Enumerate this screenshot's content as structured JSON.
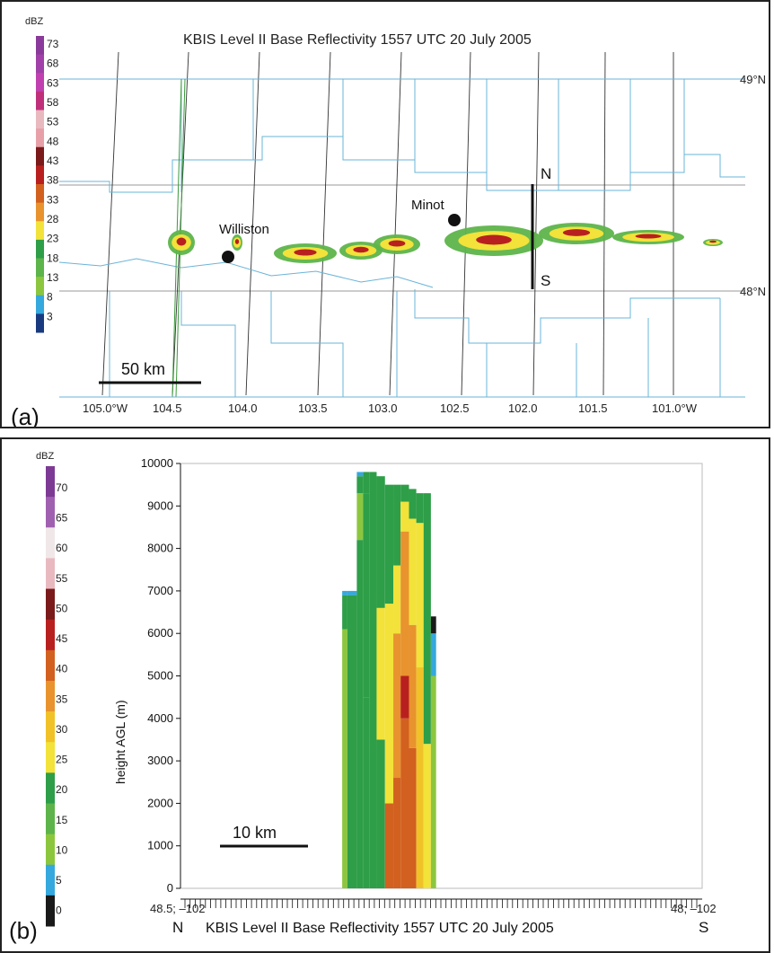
{
  "panel_a": {
    "label": "(a)",
    "title": "KBIS Level II Base Reflectivity 1557 UTC 20 July 2005",
    "legend_title": "dBZ",
    "legend_ticks": [
      "73",
      "68",
      "63",
      "58",
      "53",
      "48",
      "43",
      "38",
      "33",
      "28",
      "23",
      "18",
      "13",
      "8",
      "3"
    ],
    "lat_labels": [
      "49°N",
      "48°N"
    ],
    "lon_labels": [
      "105.0°W",
      "104.5",
      "104.0",
      "103.5",
      "103.0",
      "102.5",
      "102.0",
      "101.5",
      "101.0°W"
    ],
    "cities": [
      "Williston",
      "Minot"
    ],
    "transect_labels": {
      "north": "N",
      "south": "S"
    },
    "scale_label": "50 km"
  },
  "panel_b": {
    "label": "(b)",
    "caption": "KBIS Level II Base Reflectivity 1557 UTC 20 July 2005",
    "legend_title": "dBZ",
    "legend_ticks": [
      "70",
      "65",
      "60",
      "55",
      "50",
      "45",
      "40",
      "35",
      "30",
      "25",
      "20",
      "15",
      "10",
      "5",
      "0"
    ],
    "ylabel": "height AGL (m)",
    "x_start_label": "48.5; –102",
    "x_end_label": "48; –102",
    "north_label": "N",
    "south_label": "S",
    "scale_label": "10 km"
  },
  "colors": {
    "dbz_0": "#1a1a1a",
    "dbz_5": "#35a8de",
    "dbz_10": "#8cc63f",
    "dbz_15": "#5db44a",
    "dbz_20": "#2e9e48",
    "dbz_25": "#3a8e3a",
    "dbz_30": "#f2e23a",
    "dbz_35": "#f0c228",
    "dbz_40": "#e8932e",
    "dbz_45": "#d2601f",
    "dbz_50": "#b8201f",
    "dbz_55": "#7a1a1a",
    "dbz_60": "#e9b9c0",
    "dbz_65": "#f0e8e8",
    "dbz_70": "#8a3a9a"
  },
  "chart_data": [
    {
      "type": "heatmap",
      "panel": "a",
      "title": "KBIS Level II Base Reflectivity 1557 UTC 20 July 2005",
      "colorbar_label": "dBZ",
      "colorbar_ticks": [
        73,
        68,
        63,
        58,
        53,
        48,
        43,
        38,
        33,
        28,
        23,
        18,
        13,
        8,
        3
      ],
      "x_axis_ticks": [
        "105.0°W",
        "104.5",
        "104.0",
        "103.5",
        "103.0",
        "102.5",
        "102.0",
        "101.5",
        "101.0°W"
      ],
      "lat_lines": [
        "49°N",
        "48°N"
      ],
      "cities": [
        {
          "name": "Williston",
          "lon": -104.1,
          "lat": 48.2
        },
        {
          "name": "Minot",
          "lon": -102.5,
          "lat": 48.3
        }
      ],
      "transect": {
        "lon": -102.0,
        "lat_start": 48.5,
        "lat_end": 48.0
      },
      "scale_bar": "50 km"
    },
    {
      "type": "heatmap",
      "panel": "b",
      "xlabel": "",
      "ylabel": "height AGL (m)",
      "ylim": [
        0,
        10000
      ],
      "y_ticks": [
        0,
        1000,
        2000,
        3000,
        4000,
        5000,
        6000,
        7000,
        8000,
        9000,
        10000
      ],
      "x_endpoints": [
        "48.5; –102",
        "48; –102"
      ],
      "colorbar_label": "dBZ",
      "colorbar_ticks": [
        70,
        65,
        60,
        55,
        50,
        45,
        40,
        35,
        30,
        25,
        20,
        15,
        10,
        5,
        0
      ],
      "scale_bar": "10 km",
      "columns": [
        {
          "x0": 0.31,
          "x1": 0.32,
          "dbz": [
            [
              0,
              6100,
              10
            ],
            [
              6100,
              6900,
              20
            ],
            [
              6900,
              7000,
              5
            ]
          ]
        },
        {
          "x0": 0.32,
          "x1": 0.338,
          "dbz": [
            [
              0,
              6900,
              20
            ],
            [
              6900,
              7000,
              5
            ]
          ]
        },
        {
          "x0": 0.338,
          "x1": 0.35,
          "dbz": [
            [
              0,
              8200,
              20
            ],
            [
              8200,
              9300,
              10
            ],
            [
              9300,
              9700,
              20
            ],
            [
              9700,
              9800,
              5
            ]
          ]
        },
        {
          "x0": 0.35,
          "x1": 0.362,
          "dbz": [
            [
              0,
              4500,
              20
            ],
            [
              4500,
              9300,
              20
            ],
            [
              9300,
              9800,
              20
            ]
          ]
        },
        {
          "x0": 0.362,
          "x1": 0.376,
          "dbz": [
            [
              0,
              9800,
              20
            ]
          ]
        },
        {
          "x0": 0.376,
          "x1": 0.392,
          "dbz": [
            [
              0,
              3500,
              20
            ],
            [
              3500,
              6600,
              30
            ],
            [
              6600,
              9700,
              20
            ]
          ]
        },
        {
          "x0": 0.392,
          "x1": 0.408,
          "dbz": [
            [
              0,
              2000,
              45
            ],
            [
              2000,
              6700,
              30
            ],
            [
              6700,
              9500,
              20
            ]
          ]
        },
        {
          "x0": 0.408,
          "x1": 0.422,
          "dbz": [
            [
              0,
              2600,
              45
            ],
            [
              2600,
              6000,
              40
            ],
            [
              6000,
              7600,
              30
            ],
            [
              7600,
              9500,
              20
            ]
          ]
        },
        {
          "x0": 0.422,
          "x1": 0.438,
          "dbz": [
            [
              0,
              4000,
              45
            ],
            [
              4000,
              5000,
              50
            ],
            [
              5000,
              8400,
              40
            ],
            [
              8400,
              9100,
              30
            ],
            [
              9100,
              9500,
              20
            ]
          ]
        },
        {
          "x0": 0.438,
          "x1": 0.452,
          "dbz": [
            [
              0,
              3300,
              45
            ],
            [
              3300,
              6200,
              40
            ],
            [
              6200,
              8700,
              30
            ],
            [
              8700,
              9400,
              20
            ]
          ]
        },
        {
          "x0": 0.452,
          "x1": 0.466,
          "dbz": [
            [
              0,
              5200,
              35
            ],
            [
              5200,
              8600,
              30
            ],
            [
              8600,
              9300,
              20
            ]
          ]
        },
        {
          "x0": 0.466,
          "x1": 0.48,
          "dbz": [
            [
              0,
              3400,
              30
            ],
            [
              3400,
              9300,
              20
            ]
          ]
        },
        {
          "x0": 0.48,
          "x1": 0.49,
          "dbz": [
            [
              0,
              5000,
              10
            ],
            [
              5000,
              6000,
              5
            ],
            [
              6000,
              6400,
              0
            ]
          ]
        }
      ]
    }
  ]
}
